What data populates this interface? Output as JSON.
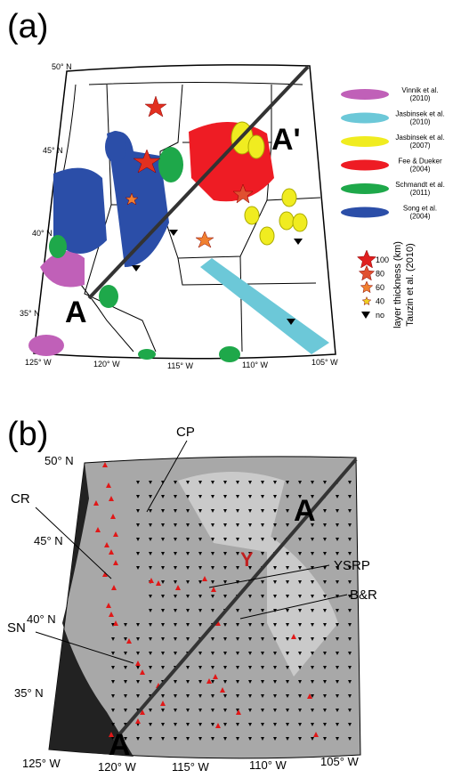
{
  "panel_a": {
    "label": "(a)",
    "lat_labels": [
      "50° N",
      "45° N",
      "40° N",
      "35° N"
    ],
    "lon_labels": [
      "125° W",
      "120° W",
      "115° W",
      "110° W",
      "105° W"
    ],
    "profile_start": "A",
    "profile_end": "A'",
    "legend": [
      {
        "name": "Vinnik et al.",
        "year": "(2010)",
        "color": "#c060b8"
      },
      {
        "name": "Jasbinsek et al.",
        "year": "(2010)",
        "color": "#6cc8d8"
      },
      {
        "name": "Jasbinsek et al.",
        "year": "(2007)",
        "color": "#f0ec20"
      },
      {
        "name": "Fee & Dueker",
        "year": "(2004)",
        "color": "#ee1c24"
      },
      {
        "name": "Schmandt et al.",
        "year": "(2011)",
        "color": "#1ea84a"
      },
      {
        "name": "Song et al.",
        "year": "(2004)",
        "color": "#2b4ea8"
      }
    ],
    "thickness_legend": {
      "items": [
        "100",
        "80",
        "60",
        "40",
        "no"
      ],
      "title": "layer thickness (km)",
      "source": "Tauzin et al. (2010)"
    }
  },
  "panel_b": {
    "label": "(b)",
    "lat_labels": [
      "50° N",
      "45° N",
      "40° N",
      "35° N"
    ],
    "lon_labels": [
      "125° W",
      "120° W",
      "115° W",
      "110° W",
      "105° W"
    ],
    "regions": [
      "CP",
      "CR",
      "SN",
      "YSRP",
      "B&R"
    ],
    "hotspot": "Y",
    "profile_start": "A",
    "profile_end": "A"
  }
}
